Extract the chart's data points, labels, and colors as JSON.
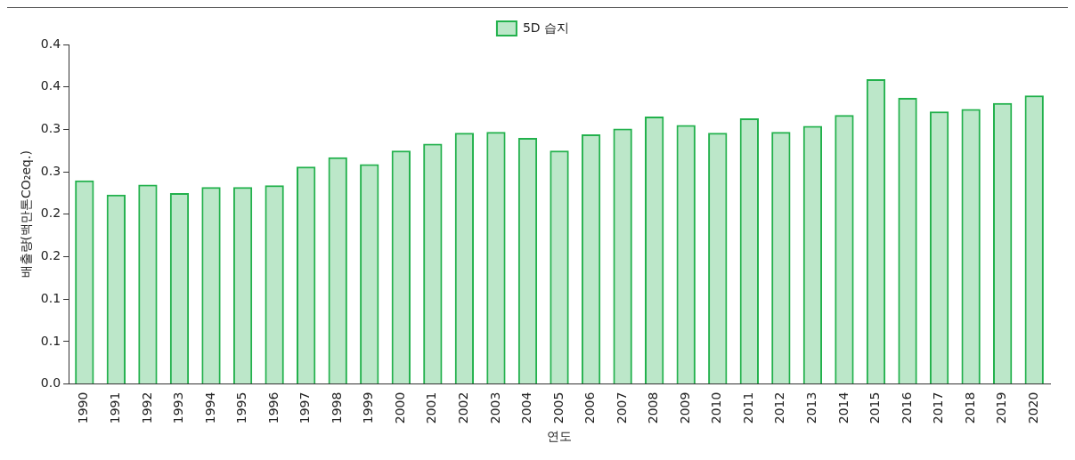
{
  "chart_data": {
    "type": "bar",
    "xlabel": "연도",
    "ylabel": "배출량(백만톤CO₂eq.)",
    "categories": [
      "1990",
      "1991",
      "1992",
      "1993",
      "1994",
      "1995",
      "1996",
      "1997",
      "1998",
      "1999",
      "2000",
      "2001",
      "2002",
      "2003",
      "2004",
      "2005",
      "2006",
      "2007",
      "2008",
      "2009",
      "2010",
      "2011",
      "2012",
      "2013",
      "2014",
      "2015",
      "2016",
      "2017",
      "2018",
      "2019",
      "2020"
    ],
    "series": [
      {
        "name": "5D 습지",
        "color": "#22b14c",
        "values": [
          0.24,
          0.223,
          0.235,
          0.225,
          0.232,
          0.232,
          0.234,
          0.256,
          0.267,
          0.259,
          0.275,
          0.283,
          0.296,
          0.297,
          0.29,
          0.275,
          0.294,
          0.301,
          0.315,
          0.305,
          0.296,
          0.313,
          0.297,
          0.304,
          0.317,
          0.359,
          0.337,
          0.321,
          0.324,
          0.331,
          0.34
        ]
      }
    ],
    "ylim": [
      0,
      0.4
    ],
    "yticks": [
      {
        "value": 0,
        "label": "0.0"
      },
      {
        "value": 0.05,
        "label": "0.1"
      },
      {
        "value": 0.1,
        "label": "0.1"
      },
      {
        "value": 0.15,
        "label": "0.2"
      },
      {
        "value": 0.2,
        "label": "0.2"
      },
      {
        "value": 0.25,
        "label": "0.3"
      },
      {
        "value": 0.3,
        "label": "0.3"
      },
      {
        "value": 0.35,
        "label": "0.4"
      },
      {
        "value": 0.4,
        "label": "0.4"
      }
    ],
    "grid": false,
    "legend": "top"
  }
}
